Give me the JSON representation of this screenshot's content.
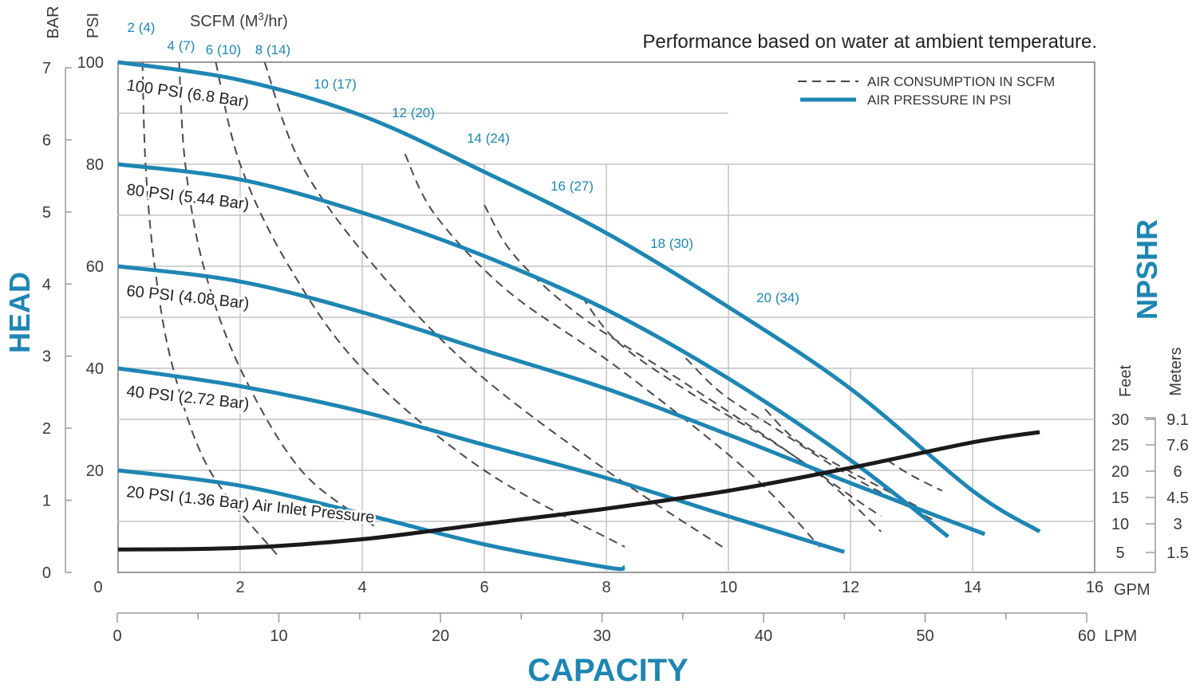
{
  "chart_data": {
    "type": "line",
    "title": "Performance based on water at ambient temperature.",
    "xlabel": "CAPACITY",
    "ylabel": "HEAD",
    "right_label": "NPSHR",
    "x_units": {
      "primary": "GPM",
      "secondary": "LPM"
    },
    "y_units": {
      "primary": "PSI",
      "secondary": "BAR"
    },
    "scfm_header": "SCFM (M",
    "scfm_header_sup": "3",
    "scfm_header_end": "/hr)",
    "npshr_units": {
      "feet": "Feet",
      "meters": "Meters"
    },
    "xlim": [
      0,
      16
    ],
    "ylim": [
      0,
      100
    ],
    "x_ticks_gpm": [
      "0",
      "2",
      "4",
      "6",
      "8",
      "10",
      "12",
      "14",
      "16"
    ],
    "x_ticks_lpm": [
      "0",
      "10",
      "20",
      "30",
      "40",
      "50",
      "60"
    ],
    "y_ticks_psi": [
      "20",
      "40",
      "60",
      "80",
      "100"
    ],
    "y_ticks_bar": [
      "0",
      "1",
      "2",
      "3",
      "4",
      "5",
      "6",
      "7"
    ],
    "npshr_ticks_feet": [
      "5",
      "10",
      "15",
      "20",
      "25",
      "30"
    ],
    "npshr_ticks_meters": [
      "1.5",
      "3",
      "4.5",
      "6",
      "7.6",
      "9.1"
    ],
    "legend": {
      "dashed": "AIR CONSUMPTION IN SCFM",
      "solid": "AIR PRESSURE IN PSI"
    },
    "series": [
      {
        "name": "100 PSI (6.8 Bar)",
        "x": [
          0,
          2,
          4,
          6,
          8,
          10,
          12,
          14,
          15.1
        ],
        "y": [
          100,
          96.5,
          89.5,
          78.5,
          66.5,
          52,
          36,
          16,
          8
        ]
      },
      {
        "name": "80 PSI (5.44 Bar)",
        "x": [
          0,
          2,
          4,
          6,
          8,
          10,
          12,
          13.6
        ],
        "y": [
          80,
          77,
          70.5,
          62,
          51.5,
          38,
          22,
          7
        ]
      },
      {
        "name": "60 PSI (4.08 Bar)",
        "x": [
          0,
          2,
          4,
          6,
          8,
          10,
          12,
          14.2
        ],
        "y": [
          60,
          57,
          51,
          43.5,
          36,
          27,
          17.5,
          7.5
        ]
      },
      {
        "name": "40 PSI (2.72 Bar)",
        "x": [
          0,
          2,
          4,
          6,
          8,
          10,
          11.9
        ],
        "y": [
          40,
          36.5,
          31.5,
          25,
          18.5,
          11,
          4
        ]
      },
      {
        "name": "20 PSI (1.36 Bar) Air Inlet Pressure",
        "x": [
          0,
          2,
          4,
          6,
          8,
          8.3
        ],
        "y": [
          20,
          17,
          11.5,
          5.5,
          1,
          1
        ]
      }
    ],
    "npshr_curve": {
      "x": [
        0,
        2,
        4,
        6,
        8,
        10,
        12,
        14,
        15.1
      ],
      "y": [
        4.5,
        4.8,
        6.5,
        9.5,
        12.5,
        16,
        20.5,
        25.5,
        27.5
      ]
    },
    "air_consumption": [
      {
        "label": "2 (4)",
        "x": [
          0.4,
          0.45,
          0.6,
          0.9,
          1.5,
          2.6
        ],
        "y": [
          100,
          80,
          60,
          40,
          20,
          3.5
        ]
      },
      {
        "label": "4 (7)",
        "x": [
          1.0,
          1.1,
          1.4,
          2.0,
          3.0,
          4.2
        ],
        "y": [
          100,
          80,
          60,
          40,
          20,
          9
        ]
      },
      {
        "label": "6 (10)",
        "x": [
          1.6,
          2.0,
          2.8,
          4.0,
          6.0,
          8.3
        ],
        "y": [
          100,
          80,
          60,
          40,
          20,
          5
        ]
      },
      {
        "label": "8 (14)",
        "x": [
          2.4,
          3.0,
          4.2,
          5.8,
          8.0,
          9.9
        ],
        "y": [
          100,
          80,
          60,
          40,
          20,
          5
        ]
      },
      {
        "label": "10 (17)",
        "x": [
          4.7,
          5.2,
          6.4,
          8.2,
          10.3,
          11.5
        ],
        "y": [
          82,
          70,
          55,
          40,
          20,
          5
        ]
      },
      {
        "label": "12 (20)",
        "x": [
          6.0,
          6.5,
          7.6,
          9.3,
          11.4,
          12.5
        ],
        "y": [
          72,
          62,
          50,
          37,
          20,
          8
        ]
      },
      {
        "label": "14 (24)",
        "x": [
          7.6,
          8.2,
          9.4,
          10.8,
          12.0,
          12.5
        ],
        "y": [
          54,
          45,
          35,
          25,
          15,
          11
        ]
      },
      {
        "label": "16 (27)",
        "x": [
          9.3,
          9.9,
          10.8,
          11.7,
          12.6,
          13.4
        ],
        "y": [
          42,
          35,
          28,
          21,
          15,
          10
        ]
      },
      {
        "label": "18 (30)",
        "x": [
          10.6,
          11.1,
          11.8,
          12.6,
          13.4
        ],
        "y": [
          32,
          26,
          21,
          16,
          11
        ]
      },
      {
        "label": "20 (34)",
        "x": [
          12.6,
          13.0,
          13.5
        ],
        "y": [
          22,
          19,
          16
        ]
      }
    ]
  }
}
